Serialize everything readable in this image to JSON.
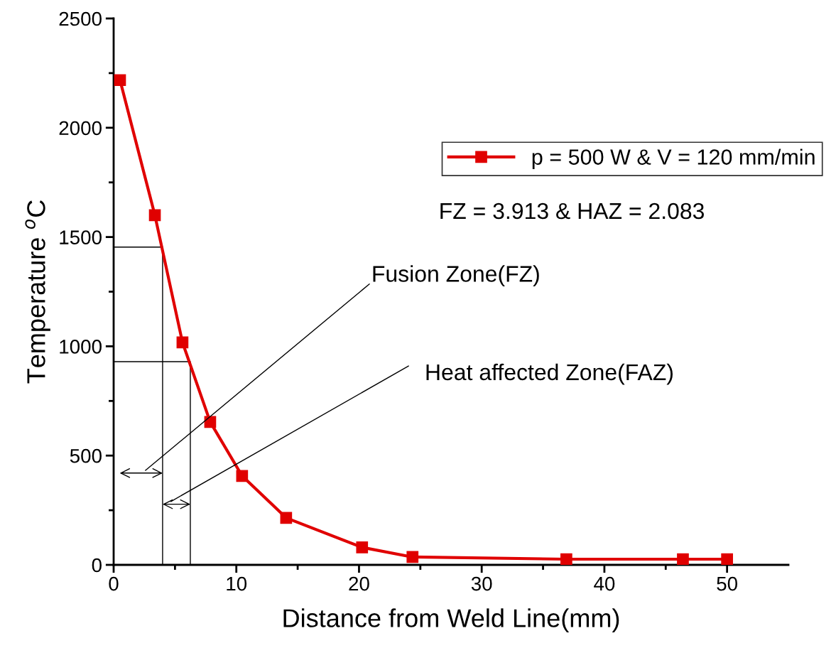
{
  "chart_data": {
    "type": "line",
    "xlabel": "Distance from Weld Line(mm)",
    "ylabel": "Temperature $^{o}$C",
    "xlim": [
      0,
      55
    ],
    "xticks": [
      0,
      10,
      20,
      30,
      40,
      50
    ],
    "ylim": [
      0,
      2500
    ],
    "yticks": [
      0,
      500,
      1000,
      1500,
      2000,
      2500
    ],
    "grid": false,
    "legend": "top right",
    "line_style": "solid",
    "series": [
      {
        "name": "p = 500 W & V = 120 mm/min",
        "color": "#e00000",
        "marker": "square",
        "x": [
          0.52,
          3.36,
          5.61,
          7.87,
          10.47,
          14.06,
          20.25,
          24.36,
          36.9,
          46.4,
          50.0
        ],
        "values": [
          2218,
          1600,
          1018,
          654,
          407,
          215,
          80,
          36,
          26,
          26,
          26
        ]
      },
      {
        "color": "#000000",
        "marker": "none",
        "x": [
          0,
          3.99,
          3.99
        ],
        "values": [
          1454,
          1454,
          0
        ]
      },
      {
        "color": "#000000",
        "marker": "none",
        "x": [
          0,
          6.25,
          6.25
        ],
        "values": [
          930,
          930,
          0
        ]
      }
    ],
    "annotations": [
      "FZ = 3.913 & HAZ = 2.083",
      "Fusion Zone(FZ)",
      "Heat affected Zone(FAZ)"
    ]
  }
}
